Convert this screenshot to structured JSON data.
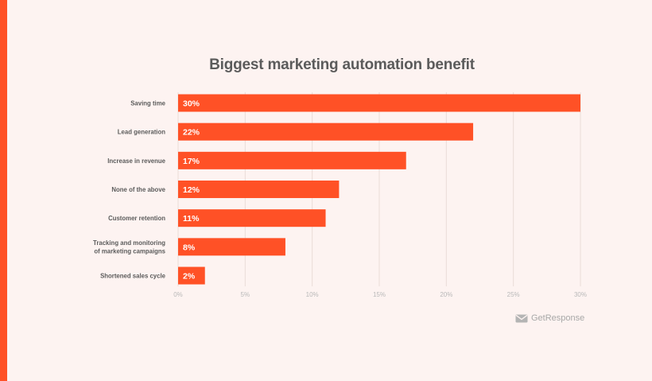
{
  "colors": {
    "background": "#fdf3f1",
    "accent": "#ff5126",
    "bar": "#ff5126",
    "grid": "#eadcd8",
    "tick_text": "#b9b9b9",
    "label_text": "#5b5b5b",
    "title_text": "#5b5b5b",
    "brand_text": "#a8a8a8"
  },
  "brand": {
    "name": "GetResponse",
    "icon": "envelope-icon"
  },
  "chart_data": {
    "type": "bar",
    "orientation": "horizontal",
    "title": "Biggest marketing automation benefit",
    "xlabel": "",
    "ylabel": "",
    "xlim": [
      0,
      30
    ],
    "grid": true,
    "legend": "none",
    "categories": [
      "Saving time",
      "Lead generation",
      "Increase in revenue",
      "None of the above",
      "Customer retention",
      "Tracking and monitoring of marketing campaigns",
      "Shortened sales cycle"
    ],
    "category_lines": [
      [
        "Saving time"
      ],
      [
        "Lead generation"
      ],
      [
        "Increase in revenue"
      ],
      [
        "None of the above"
      ],
      [
        "Customer retention"
      ],
      [
        "Tracking and monitoring",
        "of marketing campaigns"
      ],
      [
        "Shortened sales cycle"
      ]
    ],
    "values": [
      30,
      22,
      17,
      12,
      11,
      8,
      2
    ],
    "value_labels": [
      "30%",
      "22%",
      "17%",
      "12%",
      "11%",
      "8%",
      "2%"
    ],
    "ticks": [
      0,
      5,
      10,
      15,
      20,
      25,
      30
    ],
    "tick_labels": [
      "0%",
      "5%",
      "10%",
      "15%",
      "20%",
      "25%",
      "30%"
    ]
  }
}
